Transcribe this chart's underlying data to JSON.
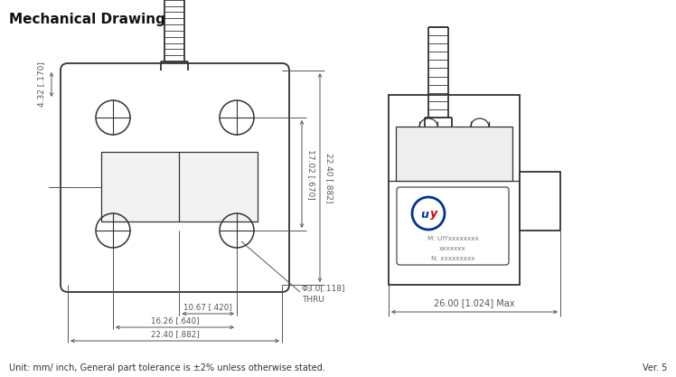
{
  "title": "Mechanical Drawing",
  "footer": "Unit: mm/ inch, General part tolerance is ±2% unless otherwise stated.",
  "version": "Ver. 5",
  "bg_color": "#ffffff",
  "line_color": "#333333",
  "dim_color": "#555555",
  "logo_text1": "M: UIYxxxxxxxx",
  "logo_text2": "xxxxxxx",
  "logo_text3": "N: xxxxxxxxx",
  "dims": {
    "d_10_67": "10.67 [.420]",
    "d_16_26": "16.26 [.640]",
    "d_22_40": "22.40 [.882]",
    "d_17_02": "17.02 [.670]",
    "d_22_40v": "22.40 [.882]",
    "d_4_32": "4.32 [.170]",
    "d_hole": "Φ3.0[.118]",
    "d_thru": "THRU",
    "d_26": "26.00 [1.024] Max"
  }
}
